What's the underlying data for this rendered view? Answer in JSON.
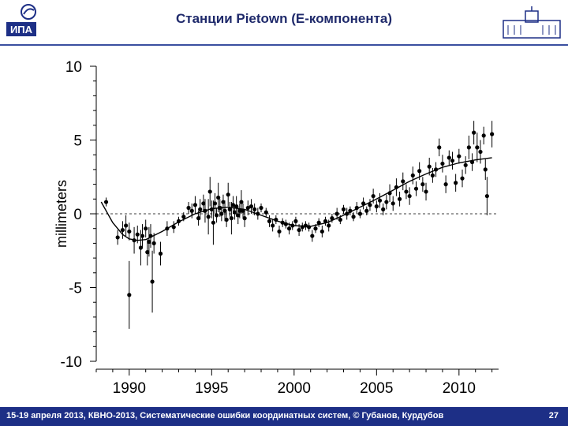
{
  "header": {
    "title": "Станции Pietown (E-компонента)",
    "logo_left_text": "ИПА"
  },
  "footer": {
    "text": "15-19  апреля  2013,  КВНО-2013,  Систематические ошибки координатных систем, © Губанов, Курдубов",
    "page": "27"
  },
  "colors": {
    "header_rule": "#3a4fa0",
    "footer_bg": "#1d2f86",
    "data": "#000000"
  },
  "chart_data": {
    "type": "scatter",
    "title": "",
    "xlabel": "",
    "ylabel": "millimeters",
    "xlim": [
      1988.0,
      2012.4
    ],
    "ylim": [
      -10,
      10
    ],
    "x_ticks": [
      1990,
      1995,
      2000,
      2005,
      2010
    ],
    "x_tick_labels": [
      "1990",
      "1995",
      "2000",
      "2005",
      "2010"
    ],
    "y_ticks": [
      10,
      5,
      0,
      -5,
      -10
    ],
    "y_tick_labels": [
      "10",
      "5",
      "0",
      "-5",
      "-10"
    ],
    "zero_line": "dashed",
    "grid": false,
    "series": [
      {
        "points": [
          {
            "x": 1988.6,
            "y": 0.8,
            "e": 0.3
          },
          {
            "x": 1989.3,
            "y": -1.6,
            "e": 0.5
          },
          {
            "x": 1989.6,
            "y": -1.1,
            "e": 0.6
          },
          {
            "x": 1989.8,
            "y": -0.8,
            "e": 0.7
          },
          {
            "x": 1990.0,
            "y": -1.2,
            "e": 0.6
          },
          {
            "x": 1990.0,
            "y": -5.5,
            "e": 2.3
          },
          {
            "x": 1990.3,
            "y": -1.8,
            "e": 0.9
          },
          {
            "x": 1990.5,
            "y": -1.4,
            "e": 0.6
          },
          {
            "x": 1990.7,
            "y": -2.3,
            "e": 1.2
          },
          {
            "x": 1990.8,
            "y": -1.5,
            "e": 0.8
          },
          {
            "x": 1991.0,
            "y": -1.0,
            "e": 0.6
          },
          {
            "x": 1991.1,
            "y": -2.6,
            "e": 0.9
          },
          {
            "x": 1991.2,
            "y": -1.9,
            "e": 1.0
          },
          {
            "x": 1991.3,
            "y": -1.5,
            "e": 0.8
          },
          {
            "x": 1991.4,
            "y": -4.6,
            "e": 2.1
          },
          {
            "x": 1991.5,
            "y": -2.0,
            "e": 0.7
          },
          {
            "x": 1991.9,
            "y": -2.7,
            "e": 0.8
          },
          {
            "x": 1992.3,
            "y": -1.0,
            "e": 0.5
          },
          {
            "x": 1992.7,
            "y": -0.9,
            "e": 0.4
          },
          {
            "x": 1993.0,
            "y": -0.5,
            "e": 0.3
          },
          {
            "x": 1993.3,
            "y": -0.2,
            "e": 0.3
          },
          {
            "x": 1993.6,
            "y": 0.4,
            "e": 0.4
          },
          {
            "x": 1993.8,
            "y": 0.2,
            "e": 0.5
          },
          {
            "x": 1994.0,
            "y": 0.6,
            "e": 0.6
          },
          {
            "x": 1994.2,
            "y": -0.3,
            "e": 0.5
          },
          {
            "x": 1994.3,
            "y": 0.3,
            "e": 0.7
          },
          {
            "x": 1994.5,
            "y": 0.7,
            "e": 0.6
          },
          {
            "x": 1994.6,
            "y": 0.2,
            "e": 0.8
          },
          {
            "x": 1994.8,
            "y": -0.2,
            "e": 1.2
          },
          {
            "x": 1994.9,
            "y": 1.5,
            "e": 1.0
          },
          {
            "x": 1995.0,
            "y": 0.3,
            "e": 0.6
          },
          {
            "x": 1995.1,
            "y": -0.6,
            "e": 1.5
          },
          {
            "x": 1995.2,
            "y": 0.7,
            "e": 0.7
          },
          {
            "x": 1995.3,
            "y": -0.1,
            "e": 0.5
          },
          {
            "x": 1995.4,
            "y": 1.1,
            "e": 1.0
          },
          {
            "x": 1995.5,
            "y": 0.4,
            "e": 0.6
          },
          {
            "x": 1995.6,
            "y": 0.0,
            "e": 0.5
          },
          {
            "x": 1995.7,
            "y": 0.8,
            "e": 0.5
          },
          {
            "x": 1995.8,
            "y": 0.2,
            "e": 0.7
          },
          {
            "x": 1995.9,
            "y": -0.4,
            "e": 0.5
          },
          {
            "x": 1996.0,
            "y": 1.3,
            "e": 0.8
          },
          {
            "x": 1996.1,
            "y": 0.3,
            "e": 0.5
          },
          {
            "x": 1996.2,
            "y": -0.3,
            "e": 1.1
          },
          {
            "x": 1996.3,
            "y": 0.6,
            "e": 0.6
          },
          {
            "x": 1996.4,
            "y": 0.1,
            "e": 0.5
          },
          {
            "x": 1996.5,
            "y": 0.5,
            "e": 0.7
          },
          {
            "x": 1996.6,
            "y": -0.1,
            "e": 0.6
          },
          {
            "x": 1996.7,
            "y": 0.2,
            "e": 0.5
          },
          {
            "x": 1996.8,
            "y": 0.8,
            "e": 0.8
          },
          {
            "x": 1996.9,
            "y": 0.2,
            "e": 0.5
          },
          {
            "x": 1997.0,
            "y": -0.3,
            "e": 0.6
          },
          {
            "x": 1997.2,
            "y": 0.4,
            "e": 0.5
          },
          {
            "x": 1997.4,
            "y": 0.5,
            "e": 0.5
          },
          {
            "x": 1997.6,
            "y": 0.3,
            "e": 0.4
          },
          {
            "x": 1997.8,
            "y": 0.0,
            "e": 0.4
          },
          {
            "x": 1998.0,
            "y": 0.4,
            "e": 0.3
          },
          {
            "x": 1998.3,
            "y": 0.1,
            "e": 0.3
          },
          {
            "x": 1998.5,
            "y": -0.5,
            "e": 0.4
          },
          {
            "x": 1998.7,
            "y": -0.8,
            "e": 0.4
          },
          {
            "x": 1998.9,
            "y": -0.4,
            "e": 0.3
          },
          {
            "x": 1999.1,
            "y": -1.2,
            "e": 0.4
          },
          {
            "x": 1999.3,
            "y": -0.6,
            "e": 0.3
          },
          {
            "x": 1999.5,
            "y": -0.7,
            "e": 0.3
          },
          {
            "x": 1999.7,
            "y": -1.0,
            "e": 0.4
          },
          {
            "x": 1999.9,
            "y": -0.8,
            "e": 0.3
          },
          {
            "x": 2000.1,
            "y": -0.5,
            "e": 0.3
          },
          {
            "x": 2000.3,
            "y": -1.1,
            "e": 0.4
          },
          {
            "x": 2000.5,
            "y": -0.9,
            "e": 0.3
          },
          {
            "x": 2000.7,
            "y": -0.8,
            "e": 0.3
          },
          {
            "x": 2000.9,
            "y": -0.9,
            "e": 0.3
          },
          {
            "x": 2001.1,
            "y": -1.5,
            "e": 0.4
          },
          {
            "x": 2001.3,
            "y": -1.0,
            "e": 0.3
          },
          {
            "x": 2001.5,
            "y": -0.6,
            "e": 0.3
          },
          {
            "x": 2001.7,
            "y": -1.2,
            "e": 0.4
          },
          {
            "x": 2001.9,
            "y": -0.5,
            "e": 0.3
          },
          {
            "x": 2002.1,
            "y": -0.8,
            "e": 0.4
          },
          {
            "x": 2002.3,
            "y": -0.3,
            "e": 0.3
          },
          {
            "x": 2002.6,
            "y": 0.0,
            "e": 0.4
          },
          {
            "x": 2002.8,
            "y": -0.4,
            "e": 0.3
          },
          {
            "x": 2003.0,
            "y": 0.3,
            "e": 0.3
          },
          {
            "x": 2003.2,
            "y": 0.0,
            "e": 0.4
          },
          {
            "x": 2003.4,
            "y": 0.2,
            "e": 0.3
          },
          {
            "x": 2003.6,
            "y": -0.2,
            "e": 0.3
          },
          {
            "x": 2003.8,
            "y": 0.4,
            "e": 0.4
          },
          {
            "x": 2004.0,
            "y": 0.0,
            "e": 0.3
          },
          {
            "x": 2004.2,
            "y": 0.7,
            "e": 0.4
          },
          {
            "x": 2004.4,
            "y": 0.2,
            "e": 0.3
          },
          {
            "x": 2004.6,
            "y": 0.6,
            "e": 0.4
          },
          {
            "x": 2004.8,
            "y": 1.2,
            "e": 0.5
          },
          {
            "x": 2005.0,
            "y": 0.5,
            "e": 0.4
          },
          {
            "x": 2005.2,
            "y": 0.9,
            "e": 0.5
          },
          {
            "x": 2005.4,
            "y": 0.3,
            "e": 0.4
          },
          {
            "x": 2005.6,
            "y": 0.8,
            "e": 0.5
          },
          {
            "x": 2005.8,
            "y": 1.4,
            "e": 0.6
          },
          {
            "x": 2006.0,
            "y": 0.7,
            "e": 0.5
          },
          {
            "x": 2006.2,
            "y": 1.8,
            "e": 0.6
          },
          {
            "x": 2006.4,
            "y": 1.0,
            "e": 0.5
          },
          {
            "x": 2006.6,
            "y": 2.2,
            "e": 0.6
          },
          {
            "x": 2006.8,
            "y": 1.5,
            "e": 0.5
          },
          {
            "x": 2007.0,
            "y": 1.2,
            "e": 0.6
          },
          {
            "x": 2007.2,
            "y": 2.6,
            "e": 0.6
          },
          {
            "x": 2007.4,
            "y": 1.7,
            "e": 0.5
          },
          {
            "x": 2007.6,
            "y": 2.9,
            "e": 0.6
          },
          {
            "x": 2007.8,
            "y": 2.0,
            "e": 0.5
          },
          {
            "x": 2008.0,
            "y": 1.5,
            "e": 0.6
          },
          {
            "x": 2008.2,
            "y": 3.2,
            "e": 0.6
          },
          {
            "x": 2008.4,
            "y": 2.6,
            "e": 0.5
          },
          {
            "x": 2008.6,
            "y": 3.0,
            "e": 0.5
          },
          {
            "x": 2008.8,
            "y": 4.5,
            "e": 0.6
          },
          {
            "x": 2009.0,
            "y": 3.4,
            "e": 0.6
          },
          {
            "x": 2009.2,
            "y": 2.0,
            "e": 0.6
          },
          {
            "x": 2009.4,
            "y": 3.8,
            "e": 0.5
          },
          {
            "x": 2009.6,
            "y": 3.6,
            "e": 0.6
          },
          {
            "x": 2009.8,
            "y": 2.1,
            "e": 0.6
          },
          {
            "x": 2010.0,
            "y": 3.9,
            "e": 0.5
          },
          {
            "x": 2010.2,
            "y": 2.4,
            "e": 0.6
          },
          {
            "x": 2010.4,
            "y": 3.3,
            "e": 0.6
          },
          {
            "x": 2010.6,
            "y": 4.5,
            "e": 0.8
          },
          {
            "x": 2010.8,
            "y": 3.5,
            "e": 0.6
          },
          {
            "x": 2010.9,
            "y": 5.5,
            "e": 0.8
          },
          {
            "x": 2011.1,
            "y": 4.5,
            "e": 1.0
          },
          {
            "x": 2011.3,
            "y": 4.2,
            "e": 0.8
          },
          {
            "x": 2011.5,
            "y": 5.3,
            "e": 0.6
          },
          {
            "x": 2011.6,
            "y": 3.0,
            "e": 0.7
          },
          {
            "x": 2011.7,
            "y": 1.2,
            "e": 1.3
          },
          {
            "x": 2012.0,
            "y": 5.4,
            "e": 0.9
          }
        ]
      },
      {
        "curve": [
          {
            "x": 1988.3,
            "y": 0.8
          },
          {
            "x": 1989.0,
            "y": -0.6
          },
          {
            "x": 1989.6,
            "y": -1.4
          },
          {
            "x": 1990.0,
            "y": -1.7
          },
          {
            "x": 1990.5,
            "y": -1.8
          },
          {
            "x": 1991.0,
            "y": -1.75
          },
          {
            "x": 1992.0,
            "y": -1.2
          },
          {
            "x": 1993.0,
            "y": -0.55
          },
          {
            "x": 1994.0,
            "y": 0.0
          },
          {
            "x": 1995.0,
            "y": 0.35
          },
          {
            "x": 1996.0,
            "y": 0.45
          },
          {
            "x": 1997.0,
            "y": 0.3
          },
          {
            "x": 1998.0,
            "y": -0.1
          },
          {
            "x": 1999.0,
            "y": -0.5
          },
          {
            "x": 2000.0,
            "y": -0.8
          },
          {
            "x": 2001.0,
            "y": -0.85
          },
          {
            "x": 2002.0,
            "y": -0.6
          },
          {
            "x": 2003.0,
            "y": -0.1
          },
          {
            "x": 2004.0,
            "y": 0.45
          },
          {
            "x": 2005.0,
            "y": 1.0
          },
          {
            "x": 2006.0,
            "y": 1.6
          },
          {
            "x": 2007.0,
            "y": 2.2
          },
          {
            "x": 2008.0,
            "y": 2.7
          },
          {
            "x": 2009.0,
            "y": 3.15
          },
          {
            "x": 2010.0,
            "y": 3.45
          },
          {
            "x": 2011.0,
            "y": 3.65
          },
          {
            "x": 2012.0,
            "y": 3.8
          }
        ]
      }
    ]
  }
}
